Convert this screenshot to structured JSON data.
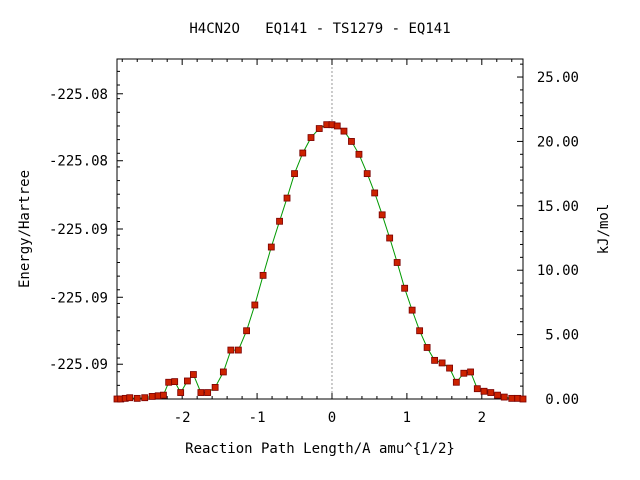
{
  "chart_data": {
    "type": "line",
    "title": "H4CN2O   EQ141 - TS1279 - EQ141",
    "xlabel": "Reaction Path Length/A amu^{1/2}",
    "ylabel": "Energy/Hartree",
    "y2label": "kJ/mol",
    "xlim": [
      -2.87,
      2.55
    ],
    "ylim_kjmol": [
      0,
      26.4
    ],
    "x_ticks": [
      -2,
      -1,
      0,
      1,
      2
    ],
    "y_ticks_left": [
      {
        "kjmol": 23.7,
        "label": "-225.08"
      },
      {
        "kjmol": 18.5,
        "label": "-225.08"
      },
      {
        "kjmol": 13.2,
        "label": "-225.09"
      },
      {
        "kjmol": 7.9,
        "label": "-225.09"
      },
      {
        "kjmol": 2.7,
        "label": "-225.09"
      }
    ],
    "y_ticks_right": [
      {
        "kjmol": 0,
        "label": "0.00"
      },
      {
        "kjmol": 5,
        "label": "5.00"
      },
      {
        "kjmol": 10,
        "label": "10.00"
      },
      {
        "kjmol": 15,
        "label": "15.00"
      },
      {
        "kjmol": 20,
        "label": "20.00"
      },
      {
        "kjmol": 25,
        "label": "25.00"
      }
    ],
    "ts_marker_x": 0,
    "line_color": "#009900",
    "marker_color": "#cc2200",
    "marker_edge": "#7a0000",
    "vline_color": "#999999",
    "series": [
      {
        "values_unit": "kJ/mol",
        "points": [
          [
            -2.87,
            0.0
          ],
          [
            -2.82,
            0.0
          ],
          [
            -2.76,
            0.05
          ],
          [
            -2.7,
            0.1
          ],
          [
            -2.6,
            0.05
          ],
          [
            -2.5,
            0.1
          ],
          [
            -2.4,
            0.2
          ],
          [
            -2.32,
            0.25
          ],
          [
            -2.25,
            0.3
          ],
          [
            -2.18,
            1.3
          ],
          [
            -2.1,
            1.35
          ],
          [
            -2.02,
            0.5
          ],
          [
            -1.93,
            1.4
          ],
          [
            -1.85,
            1.9
          ],
          [
            -1.75,
            0.5
          ],
          [
            -1.66,
            0.5
          ],
          [
            -1.56,
            0.9
          ],
          [
            -1.45,
            2.1
          ],
          [
            -1.35,
            3.8
          ],
          [
            -1.25,
            3.8
          ],
          [
            -1.14,
            5.3
          ],
          [
            -1.03,
            7.3
          ],
          [
            -0.92,
            9.6
          ],
          [
            -0.81,
            11.8
          ],
          [
            -0.7,
            13.8
          ],
          [
            -0.6,
            15.6
          ],
          [
            -0.5,
            17.5
          ],
          [
            -0.39,
            19.1
          ],
          [
            -0.28,
            20.3
          ],
          [
            -0.17,
            21.0
          ],
          [
            -0.07,
            21.3
          ],
          [
            0.0,
            21.3
          ],
          [
            0.07,
            21.2
          ],
          [
            0.16,
            20.8
          ],
          [
            0.26,
            20.0
          ],
          [
            0.36,
            19.0
          ],
          [
            0.47,
            17.5
          ],
          [
            0.57,
            16.0
          ],
          [
            0.67,
            14.3
          ],
          [
            0.77,
            12.5
          ],
          [
            0.87,
            10.6
          ],
          [
            0.97,
            8.6
          ],
          [
            1.07,
            6.9
          ],
          [
            1.17,
            5.3
          ],
          [
            1.27,
            4.0
          ],
          [
            1.37,
            3.0
          ],
          [
            1.47,
            2.8
          ],
          [
            1.57,
            2.4
          ],
          [
            1.66,
            1.3
          ],
          [
            1.76,
            2.0
          ],
          [
            1.85,
            2.1
          ],
          [
            1.94,
            0.8
          ],
          [
            2.03,
            0.6
          ],
          [
            2.12,
            0.5
          ],
          [
            2.21,
            0.3
          ],
          [
            2.3,
            0.15
          ],
          [
            2.4,
            0.05
          ],
          [
            2.48,
            0.05
          ],
          [
            2.55,
            0.0
          ]
        ]
      }
    ]
  }
}
